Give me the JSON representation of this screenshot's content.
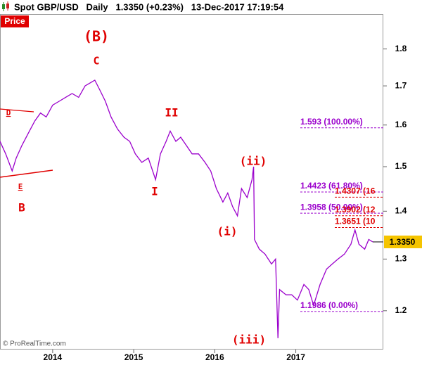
{
  "chart_data": {
    "type": "line",
    "title": "Spot GBP/USD   Daily   1.3350 (+0.23%)   13-Dec-2017 17:19:54",
    "panel_label": "Price",
    "credit": "© ProRealTime.com",
    "log_scale": true,
    "xlim": [
      2013.35,
      2018.08
    ],
    "xticks": [
      2014,
      2015,
      2016,
      2017
    ],
    "ylim": [
      1.13,
      1.9
    ],
    "yticks": [
      1.2,
      1.3,
      1.4,
      1.5,
      1.6,
      1.7,
      1.8
    ],
    "series": [
      {
        "name": "Spot GBP/USD",
        "color": "#9b00cc",
        "x": [
          2013.35,
          2013.42,
          2013.5,
          2013.55,
          2013.62,
          2013.7,
          2013.78,
          2013.85,
          2013.92,
          2014.0,
          2014.08,
          2014.16,
          2014.24,
          2014.32,
          2014.4,
          2014.48,
          2014.52,
          2014.58,
          2014.65,
          2014.72,
          2014.8,
          2014.88,
          2014.95,
          2015.02,
          2015.1,
          2015.18,
          2015.27,
          2015.33,
          2015.4,
          2015.45,
          2015.52,
          2015.58,
          2015.65,
          2015.72,
          2015.8,
          2015.88,
          2015.95,
          2016.02,
          2016.1,
          2016.16,
          2016.22,
          2016.28,
          2016.33,
          2016.4,
          2016.46,
          2016.48,
          2016.49,
          2016.55,
          2016.62,
          2016.7,
          2016.75,
          2016.78,
          2016.8,
          2016.88,
          2016.95,
          2017.02,
          2017.1,
          2017.16,
          2017.22,
          2017.3,
          2017.38,
          2017.45,
          2017.52,
          2017.6,
          2017.68,
          2017.73,
          2017.78,
          2017.85,
          2017.9,
          2017.95
        ],
        "values": [
          1.56,
          1.53,
          1.49,
          1.52,
          1.55,
          1.58,
          1.61,
          1.63,
          1.62,
          1.65,
          1.66,
          1.67,
          1.68,
          1.67,
          1.7,
          1.71,
          1.715,
          1.69,
          1.66,
          1.62,
          1.59,
          1.57,
          1.56,
          1.53,
          1.51,
          1.52,
          1.47,
          1.53,
          1.56,
          1.585,
          1.56,
          1.57,
          1.55,
          1.53,
          1.53,
          1.51,
          1.49,
          1.45,
          1.42,
          1.44,
          1.41,
          1.39,
          1.45,
          1.43,
          1.47,
          1.5,
          1.34,
          1.32,
          1.31,
          1.29,
          1.3,
          1.15,
          1.24,
          1.23,
          1.23,
          1.22,
          1.25,
          1.24,
          1.21,
          1.25,
          1.28,
          1.29,
          1.3,
          1.31,
          1.33,
          1.36,
          1.33,
          1.32,
          1.34,
          1.335
        ]
      }
    ],
    "last_price": {
      "value": 1.335,
      "label": "1.3350"
    },
    "levels": [
      {
        "value": 1.593,
        "label": "1.593 (100.00%)",
        "color": "#9b00cc"
      },
      {
        "value": 1.4423,
        "label": "1.4423 (61.80%)",
        "color": "#9b00cc"
      },
      {
        "value": 1.4307,
        "label": "1.4307 (16",
        "color": "#e00000"
      },
      {
        "value": 1.3958,
        "label": "1.3958 (50.00%)",
        "color": "#9b00cc"
      },
      {
        "value": 1.3902,
        "label": "1.3902 (12",
        "color": "#e00000"
      },
      {
        "value": 1.3651,
        "label": "1.3651 (10",
        "color": "#e00000"
      },
      {
        "value": 1.1986,
        "label": "1.1986 (0.00%)",
        "color": "#9b00cc"
      }
    ],
    "annotations": [
      "(B)",
      "C",
      "II",
      "I",
      "(ii)",
      "(i)",
      "(iii)",
      "B",
      "D",
      "E"
    ]
  }
}
